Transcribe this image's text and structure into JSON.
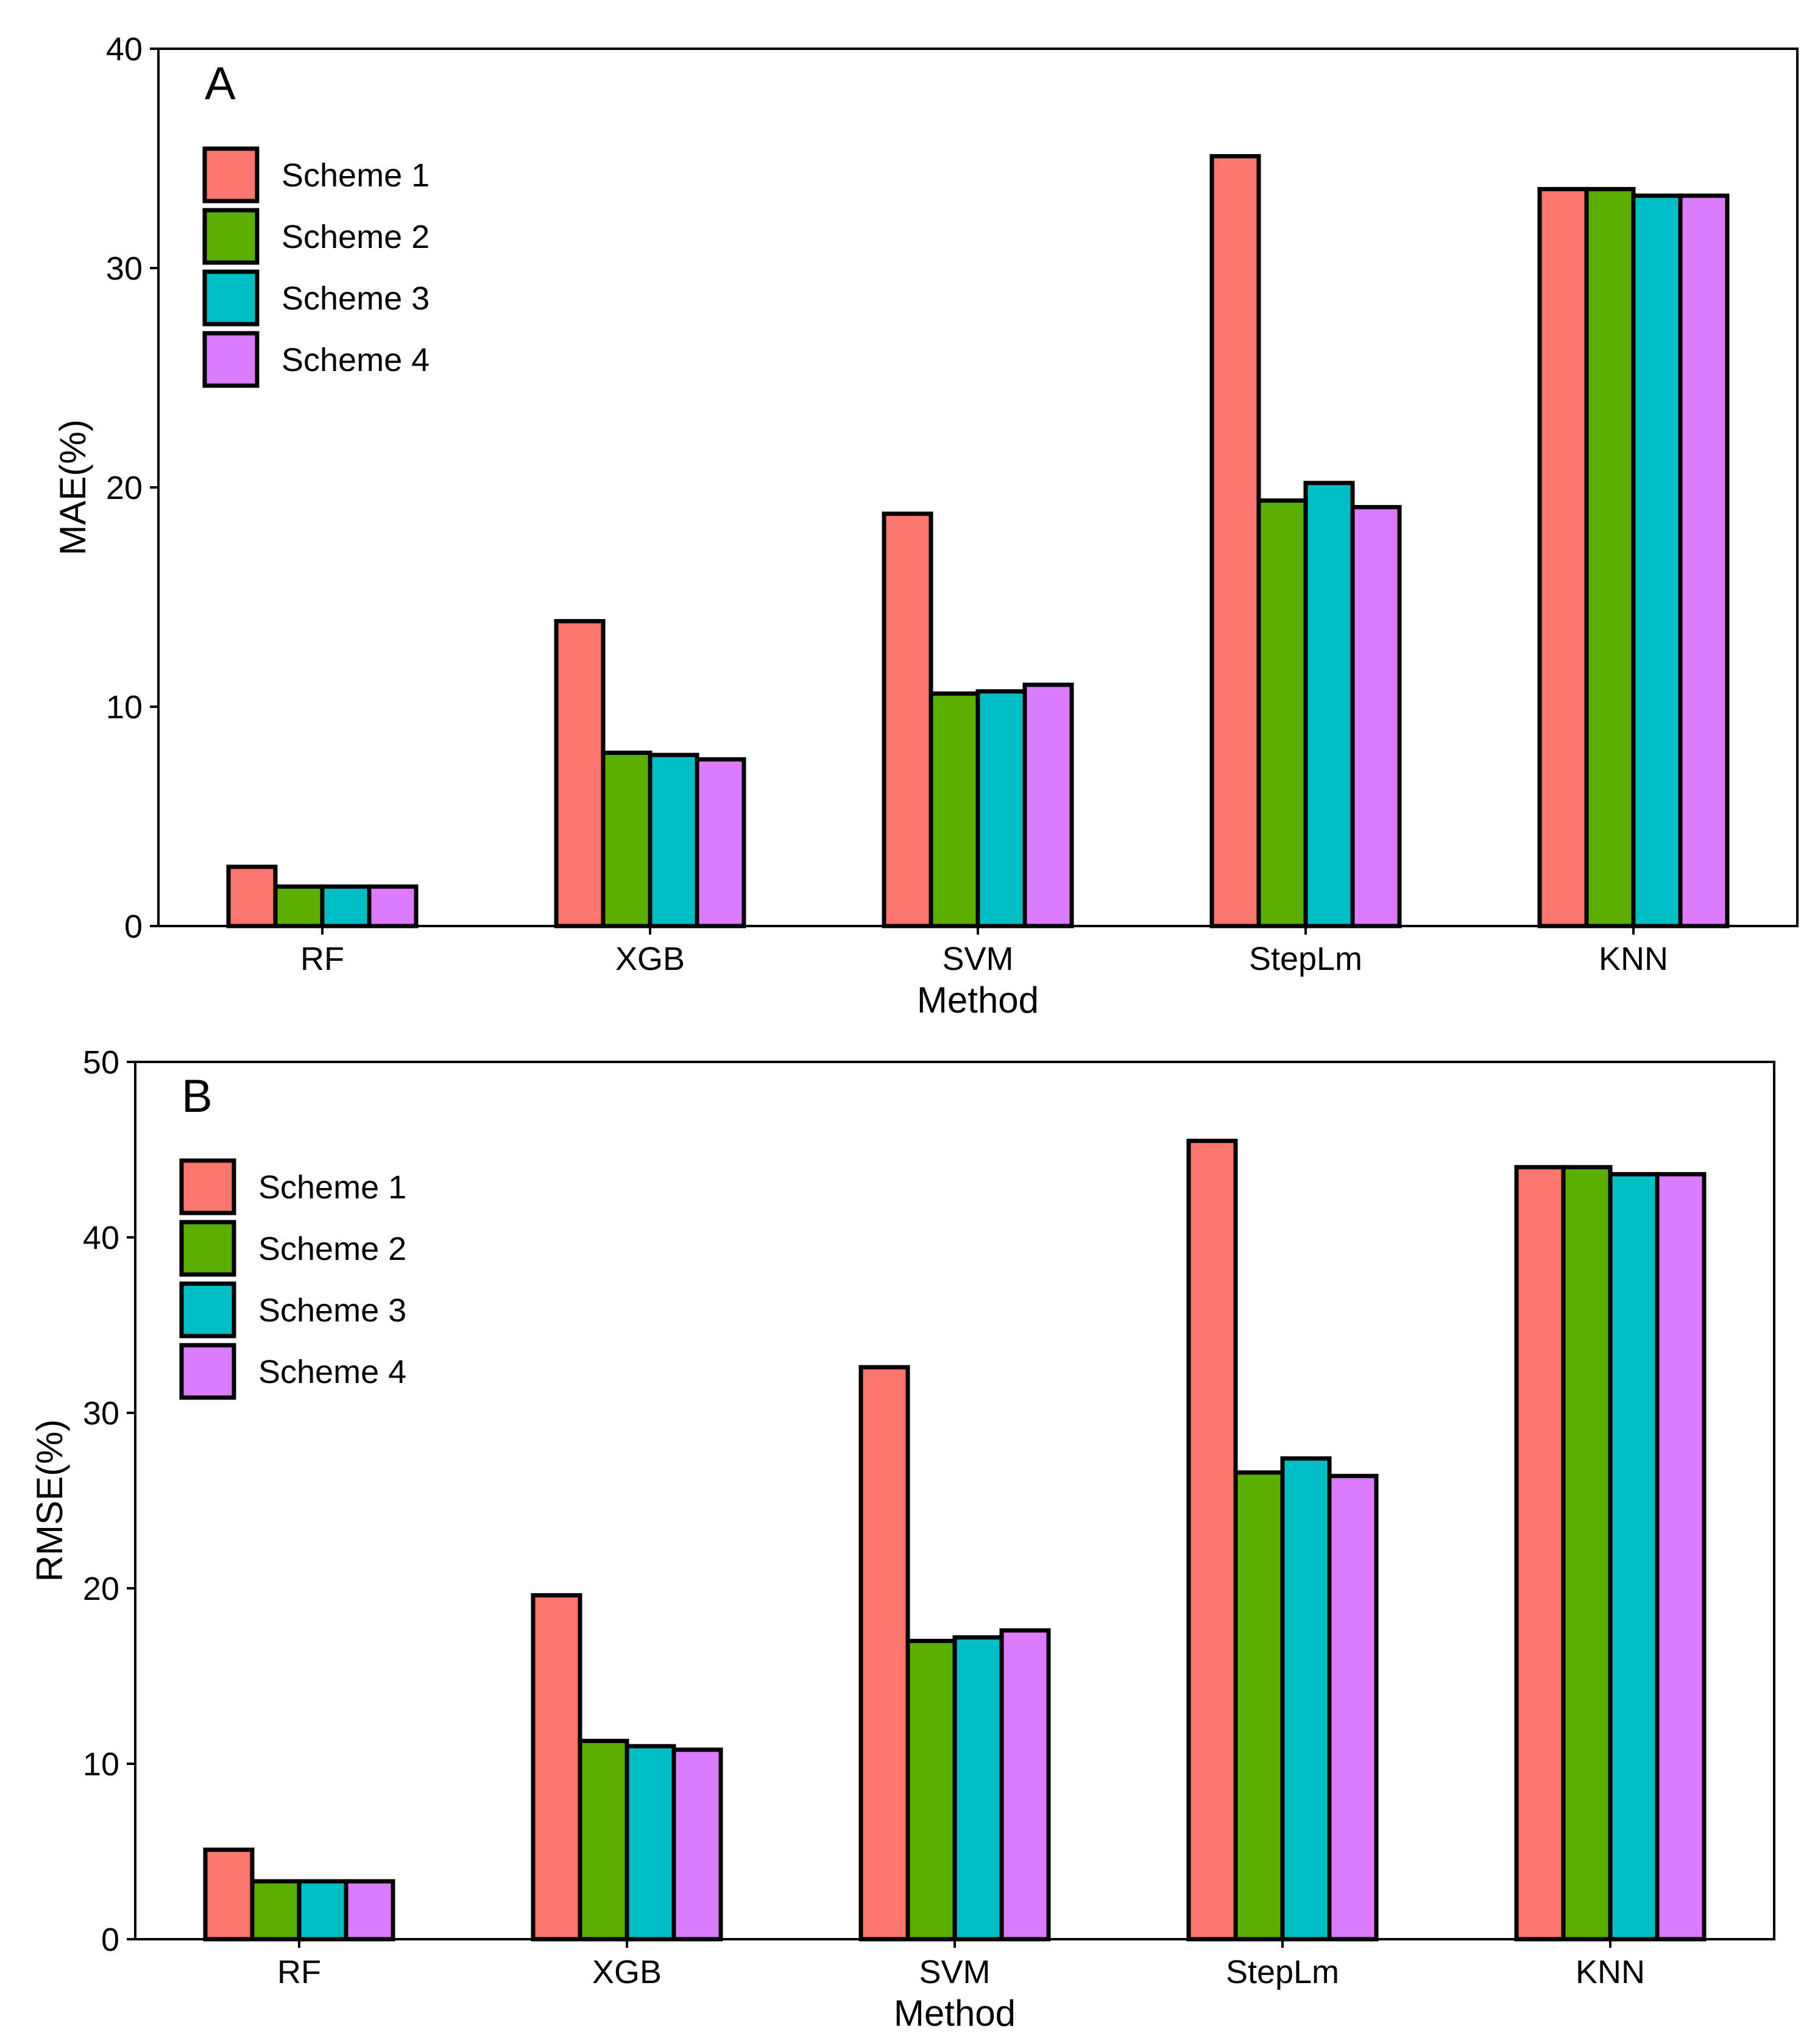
{
  "colors": {
    "scheme1": "#F8766D",
    "scheme2": "#5BAD00",
    "scheme3": "#00BFC4",
    "scheme4": "#DD7BFF",
    "outline": "#000000"
  },
  "chart_data": [
    {
      "type": "bar",
      "panel": "A",
      "title": "",
      "xlabel": "Method",
      "ylabel": "MAE(%)",
      "ylim": [
        0,
        40
      ],
      "yticks": [
        0,
        10,
        20,
        30,
        40
      ],
      "grid": false,
      "legend_position": "top-left",
      "categories": [
        "RF",
        "XGB",
        "SVM",
        "StepLm",
        "KNN"
      ],
      "series": [
        {
          "name": "Scheme 1",
          "color": "#F8766D",
          "values": [
            2.7,
            13.9,
            18.8,
            35.1,
            33.6
          ]
        },
        {
          "name": "Scheme 2",
          "color": "#5BAD00",
          "values": [
            1.8,
            7.9,
            10.6,
            19.4,
            33.6
          ]
        },
        {
          "name": "Scheme 3",
          "color": "#00BFC4",
          "values": [
            1.8,
            7.8,
            10.7,
            20.2,
            33.3
          ]
        },
        {
          "name": "Scheme 4",
          "color": "#DD7BFF",
          "values": [
            1.8,
            7.6,
            11.0,
            19.1,
            33.3
          ]
        }
      ]
    },
    {
      "type": "bar",
      "panel": "B",
      "title": "",
      "xlabel": "Method",
      "ylabel": "RMSE(%)",
      "ylim": [
        0,
        50
      ],
      "yticks": [
        0,
        10,
        20,
        30,
        40,
        50
      ],
      "grid": false,
      "legend_position": "top-left",
      "categories": [
        "RF",
        "XGB",
        "SVM",
        "StepLm",
        "KNN"
      ],
      "series": [
        {
          "name": "Scheme 1",
          "color": "#F8766D",
          "values": [
            5.1,
            19.6,
            32.6,
            45.5,
            44.0
          ]
        },
        {
          "name": "Scheme 2",
          "color": "#5BAD00",
          "values": [
            3.3,
            11.3,
            17.0,
            26.6,
            44.0
          ]
        },
        {
          "name": "Scheme 3",
          "color": "#00BFC4",
          "values": [
            3.3,
            11.0,
            17.2,
            27.4,
            43.6
          ]
        },
        {
          "name": "Scheme 4",
          "color": "#DD7BFF",
          "values": [
            3.3,
            10.8,
            17.6,
            26.4,
            43.6
          ]
        }
      ]
    }
  ]
}
